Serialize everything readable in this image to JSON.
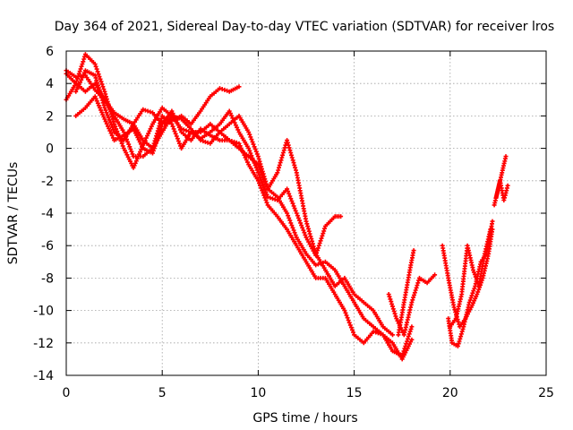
{
  "chart_data": {
    "type": "scatter",
    "title": "Day 364 of 2021, Sidereal Day-to-day VTEC variation (SDTVAR) for receiver lros",
    "xlabel": "GPS time / hours",
    "ylabel": "SDTVAR / TECUs",
    "xlim": [
      0,
      25
    ],
    "ylim": [
      -14,
      6
    ],
    "xticks": [
      0,
      5,
      10,
      15,
      20,
      25
    ],
    "yticks": [
      -14,
      -12,
      -10,
      -8,
      -6,
      -4,
      -2,
      0,
      2,
      4,
      6
    ],
    "grid": true,
    "marker": "+",
    "color": "#ff0000",
    "series": [
      {
        "name": "series-1",
        "x": [
          0.0,
          0.5,
          1.0,
          1.5,
          2.0,
          2.5,
          3.0,
          3.5,
          4.0,
          4.5,
          5.0,
          5.5,
          6.0,
          6.5,
          7.0,
          7.5,
          8.0,
          8.5,
          9.0
        ],
        "y": [
          4.8,
          4.4,
          4.5,
          3.6,
          3.0,
          2.2,
          1.8,
          1.5,
          2.4,
          2.2,
          1.5,
          1.7,
          2.0,
          1.5,
          2.3,
          3.2,
          3.7,
          3.5,
          3.8
        ]
      },
      {
        "name": "series-2",
        "x": [
          0.0,
          0.5,
          1.0,
          1.5,
          2.0,
          2.5,
          3.0,
          3.5,
          4.0,
          4.5,
          5.0,
          5.5,
          6.0,
          6.5,
          7.0,
          7.5,
          8.0,
          8.5,
          9.0,
          9.5,
          10.0,
          10.5,
          11.0,
          11.5,
          12.0,
          12.5,
          13.0,
          13.5,
          14.0,
          14.3
        ],
        "y": [
          3.0,
          4.0,
          5.8,
          5.2,
          3.5,
          1.5,
          0.0,
          -1.2,
          0.2,
          1.5,
          2.5,
          2.0,
          1.2,
          1.0,
          0.6,
          1.0,
          1.5,
          2.3,
          1.0,
          0.0,
          -1.5,
          -3.0,
          -3.2,
          -2.5,
          -4.0,
          -5.5,
          -6.6,
          -4.8,
          -4.2,
          -4.2
        ]
      },
      {
        "name": "series-3",
        "x": [
          0.5,
          1.0,
          1.5,
          2.0,
          2.5,
          3.0,
          3.5,
          4.0,
          4.5,
          5.0,
          5.5,
          6.0,
          6.5,
          7.0,
          7.5,
          8.0,
          8.5,
          9.0,
          9.5,
          10.0,
          10.5,
          11.0,
          11.5,
          12.0,
          12.5,
          13.0,
          13.5,
          14.0,
          14.5,
          15.0,
          15.5,
          16.0,
          16.5,
          17.0
        ],
        "y": [
          3.5,
          4.8,
          4.5,
          2.5,
          1.0,
          0.5,
          1.5,
          0.5,
          0.0,
          1.0,
          2.0,
          1.8,
          1.2,
          0.5,
          0.3,
          1.0,
          1.5,
          2.0,
          1.0,
          -0.5,
          -2.5,
          -1.5,
          0.5,
          -1.5,
          -4.5,
          -6.5,
          -7.5,
          -8.5,
          -8.0,
          -9.0,
          -9.5,
          -10.0,
          -11.0,
          -11.5
        ]
      },
      {
        "name": "series-4",
        "x": [
          0.5,
          1.0,
          1.5,
          2.0,
          2.5,
          3.0,
          3.5,
          4.0,
          4.5,
          5.0,
          5.5,
          6.0,
          6.5,
          7.0,
          7.5,
          8.0,
          8.5,
          9.0,
          9.5,
          10.0,
          10.5,
          11.0,
          11.5,
          12.0,
          12.5,
          13.0,
          13.5,
          14.0,
          14.5,
          15.0,
          15.5,
          16.0,
          16.5,
          17.0,
          17.5,
          18.0
        ],
        "y": [
          2.0,
          2.5,
          3.2,
          1.8,
          0.5,
          0.8,
          1.2,
          0.0,
          -0.3,
          1.5,
          2.3,
          1.0,
          0.5,
          1.2,
          0.8,
          0.5,
          0.5,
          0.0,
          -0.5,
          -1.0,
          -2.5,
          -3.0,
          -4.0,
          -5.5,
          -6.5,
          -7.2,
          -7.0,
          -7.5,
          -8.5,
          -9.5,
          -10.5,
          -11.0,
          -11.5,
          -12.0,
          -13.0,
          -11.8
        ]
      },
      {
        "name": "series-5",
        "x": [
          0.0,
          0.5,
          1.0,
          1.5,
          2.0,
          2.5,
          3.0,
          3.5,
          4.0,
          4.5,
          5.0,
          5.5,
          6.0,
          6.5,
          7.0,
          7.5,
          8.0,
          8.5,
          9.0,
          9.5,
          10.0,
          10.5,
          11.0,
          11.5,
          12.0,
          12.5,
          13.0,
          13.5,
          14.0,
          14.5,
          15.0,
          15.5,
          16.0,
          16.5,
          17.0,
          17.5,
          18.0
        ],
        "y": [
          4.6,
          4.0,
          3.5,
          4.0,
          3.0,
          2.0,
          1.0,
          -0.5,
          -0.5,
          0.0,
          2.0,
          1.5,
          0.0,
          1.0,
          1.0,
          1.5,
          1.0,
          0.5,
          0.3,
          -1.0,
          -2.0,
          -3.5,
          -4.2,
          -5.0,
          -6.0,
          -7.0,
          -8.0,
          -8.0,
          -9.0,
          -10.0,
          -11.5,
          -12.0,
          -11.3,
          -11.5,
          -12.5,
          -12.8,
          -11.0
        ]
      },
      {
        "name": "series-6",
        "x": [
          16.8,
          17.2,
          17.6,
          18.0,
          18.4,
          18.8,
          19.2
        ],
        "y": [
          -9.0,
          -10.5,
          -11.5,
          -9.5,
          -8.0,
          -8.3,
          -7.8
        ]
      },
      {
        "name": "series-7",
        "x": [
          17.3,
          17.6,
          17.9,
          18.1
        ],
        "y": [
          -11.5,
          -9.5,
          -7.5,
          -6.3
        ]
      },
      {
        "name": "series-8",
        "x": [
          19.6,
          19.9,
          20.2,
          20.5,
          20.8,
          21.1,
          21.4,
          21.7,
          22.0,
          22.2
        ],
        "y": [
          -6.0,
          -8.0,
          -9.8,
          -11.0,
          -10.5,
          -9.8,
          -9.0,
          -8.0,
          -6.5,
          -5.0
        ]
      },
      {
        "name": "series-9",
        "x": [
          19.9,
          20.1,
          20.4,
          20.7,
          21.0,
          21.3,
          21.6,
          21.9,
          22.2
        ],
        "y": [
          -10.5,
          -12.0,
          -12.2,
          -11.0,
          -9.5,
          -8.5,
          -7.0,
          -6.5,
          -4.5
        ]
      },
      {
        "name": "series-10",
        "x": [
          20.0,
          20.3,
          20.6,
          20.9,
          21.2,
          21.5,
          21.8,
          22.1
        ],
        "y": [
          -11.0,
          -10.5,
          -9.0,
          -6.0,
          -7.5,
          -8.5,
          -6.5,
          -5.0
        ]
      },
      {
        "name": "series-11",
        "x": [
          22.3,
          22.5,
          22.7,
          22.9
        ],
        "y": [
          -3.5,
          -2.5,
          -1.5,
          -0.5
        ]
      },
      {
        "name": "series-12",
        "x": [
          22.4,
          22.6,
          22.8,
          23.0
        ],
        "y": [
          -3.0,
          -2.0,
          -3.2,
          -2.3
        ]
      }
    ]
  }
}
